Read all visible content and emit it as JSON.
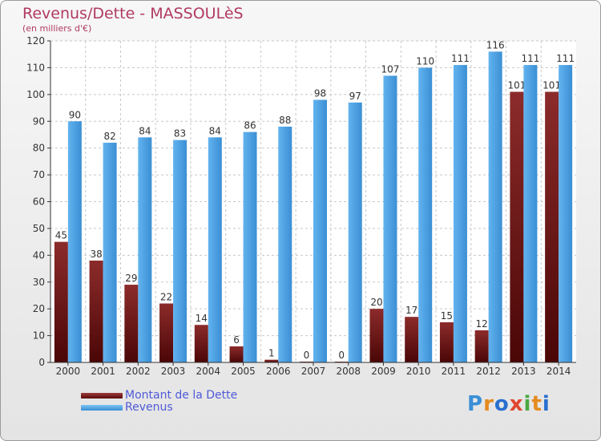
{
  "header": {
    "title": "Revenus/Dette - MASSOULèS",
    "subtitle": "(en milliers d'€)"
  },
  "legend": {
    "items": [
      {
        "label": "Montant de la Dette",
        "color": "#6e0d0d"
      },
      {
        "label": "Revenus",
        "color": "#3f97d9"
      }
    ]
  },
  "logo": {
    "text": "Proxiti",
    "colors": [
      "#3b8fd6",
      "#e58b1f",
      "#2a6fcf",
      "#e0472f",
      "#4aa843",
      "#e58b1f",
      "#2a6fcf"
    ]
  },
  "chart_data": {
    "type": "bar",
    "title": "Revenus/Dette - MASSOULèS",
    "subtitle": "(en milliers d'€)",
    "categories": [
      "2000",
      "2001",
      "2002",
      "2003",
      "2004",
      "2005",
      "2006",
      "2007",
      "2008",
      "2009",
      "2010",
      "2011",
      "2012",
      "2013",
      "2014"
    ],
    "series": [
      {
        "name": "Montant de la Dette",
        "color": "#7a1f1f",
        "values": [
          45,
          38,
          29,
          22,
          14,
          6,
          1,
          0,
          0,
          20,
          17,
          15,
          12,
          101,
          101
        ]
      },
      {
        "name": "Revenus",
        "color": "#4aa3e6",
        "values": [
          90,
          82,
          84,
          83,
          84,
          86,
          88,
          98,
          97,
          107,
          110,
          111,
          116,
          111,
          111
        ]
      }
    ],
    "ylim": [
      0,
      120
    ],
    "yticks": [
      0,
      10,
      20,
      30,
      40,
      50,
      60,
      70,
      80,
      90,
      100,
      110,
      120
    ],
    "grid": true,
    "legend_position": "bottom-left"
  }
}
